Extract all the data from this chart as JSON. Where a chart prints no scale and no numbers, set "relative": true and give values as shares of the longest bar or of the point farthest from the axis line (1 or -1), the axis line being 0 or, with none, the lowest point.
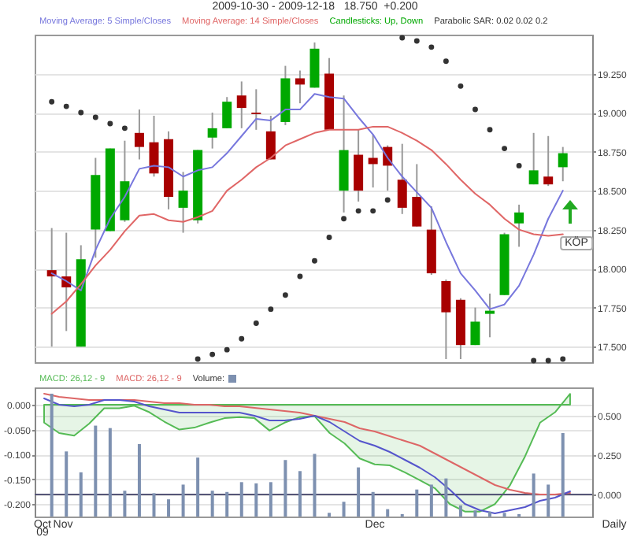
{
  "chart_data": [
    {
      "type": "candlestick",
      "title": "2009-10-30 - 2009-12-18   18.750  +0.200",
      "categories": [
        null,
        null,
        null,
        null,
        null,
        null,
        null,
        null,
        null,
        null,
        null,
        null,
        null,
        null,
        null,
        null,
        null,
        null,
        null,
        null,
        null,
        null,
        null,
        null,
        null,
        null,
        null,
        null,
        null,
        null,
        null,
        null,
        null,
        null,
        null,
        null
      ],
      "series": [
        {
          "name": "Moving Average: 5 Simple/Closes",
          "type": "line",
          "color": "#7777dd",
          "values": [
            17.97,
            17.92,
            17.86,
            18.12,
            18.32,
            18.46,
            18.64,
            18.66,
            18.65,
            18.59,
            18.63,
            18.65,
            18.74,
            18.85,
            18.96,
            18.95,
            19.02,
            19.02,
            19.12,
            19.1,
            19.09,
            18.97,
            18.86,
            18.71,
            18.59,
            18.49,
            18.39,
            18.17,
            17.97,
            17.86,
            17.74,
            17.77,
            17.89,
            18.09,
            18.32,
            18.5
          ]
        },
        {
          "name": "Moving Average: 14 Simple/Closes",
          "type": "line",
          "color": "#e06666",
          "values": [
            17.71,
            17.79,
            17.9,
            18.02,
            18.12,
            18.24,
            18.34,
            18.35,
            18.31,
            18.3,
            18.33,
            18.37,
            18.5,
            18.57,
            18.65,
            18.71,
            18.79,
            18.83,
            18.87,
            18.89,
            18.89,
            18.89,
            18.91,
            18.91,
            18.87,
            18.82,
            18.76,
            18.67,
            18.57,
            18.48,
            18.41,
            18.32,
            18.25,
            18.22,
            18.21,
            18.22
          ]
        },
        {
          "name": "Candlesticks: Up, Down",
          "type": "candlestick",
          "colors": [
            "#a80000",
            "#a80000",
            "#00a800",
            "#00a800",
            "#00a800",
            "#00a800",
            "#a80000",
            "#a80000",
            "#a80000",
            "#00a800",
            "#00a800",
            "#00a800",
            "#00a800",
            "#a80000",
            "#a80000",
            "#a80000",
            "#00a800",
            "#a80000",
            "#00a800",
            "#a80000",
            "#00a800",
            "#a80000",
            "#a80000",
            "#a80000",
            "#a80000",
            "#a80000",
            "#a80000",
            "#a80000",
            "#a80000",
            "#00a800",
            "#00a800",
            "#00a800",
            "#00a800",
            "#00a800",
            "#a80000",
            "#00a800"
          ],
          "ohlc": [
            [
              17.99,
              18.26,
              17.5,
              17.95
            ],
            [
              17.95,
              18.23,
              17.6,
              17.88
            ],
            [
              17.5,
              18.15,
              17.5,
              18.06
            ],
            [
              18.25,
              18.71,
              18.07,
              18.6
            ],
            [
              18.24,
              18.77,
              18.24,
              18.77
            ],
            [
              18.31,
              18.82,
              18.3,
              18.56
            ],
            [
              18.87,
              19.02,
              18.7,
              18.78
            ],
            [
              18.81,
              18.98,
              18.59,
              18.61
            ],
            [
              18.83,
              18.88,
              18.38,
              18.46
            ],
            [
              18.39,
              18.62,
              18.23,
              18.5
            ],
            [
              18.31,
              18.76,
              18.29,
              18.76
            ],
            [
              18.84,
              19.0,
              18.77,
              18.9
            ],
            [
              18.9,
              19.1,
              18.9,
              19.07
            ],
            [
              19.11,
              19.2,
              18.9,
              19.03
            ],
            [
              19.0,
              19.15,
              18.89,
              18.99
            ],
            [
              18.88,
              18.98,
              18.7,
              18.7
            ],
            [
              18.94,
              19.3,
              18.92,
              19.22
            ],
            [
              19.22,
              19.27,
              19.06,
              19.18
            ],
            [
              19.16,
              19.45,
              19.16,
              19.41
            ],
            [
              19.25,
              19.35,
              18.89,
              18.89
            ],
            [
              18.5,
              19.11,
              18.36,
              18.76
            ],
            [
              18.73,
              18.89,
              18.43,
              18.5
            ],
            [
              18.71,
              18.86,
              18.52,
              18.67
            ],
            [
              18.78,
              18.79,
              18.5,
              18.66
            ],
            [
              18.57,
              18.8,
              18.35,
              18.39
            ],
            [
              18.46,
              18.67,
              18.27,
              18.27
            ],
            [
              18.25,
              18.4,
              17.96,
              17.97
            ],
            [
              17.92,
              17.93,
              17.42,
              17.72
            ],
            [
              17.8,
              17.81,
              17.42,
              17.51
            ],
            [
              17.51,
              17.75,
              17.51,
              17.66
            ],
            [
              17.71,
              17.84,
              17.56,
              17.73
            ],
            [
              17.83,
              18.23,
              17.83,
              18.22
            ],
            [
              18.29,
              18.41,
              18.14,
              18.36
            ],
            [
              18.54,
              18.87,
              18.54,
              18.63
            ],
            [
              18.59,
              18.85,
              18.53,
              18.54
            ],
            [
              18.65,
              18.78,
              18.56,
              18.74
            ]
          ]
        },
        {
          "name": "Parabolic SAR: 0.02 0.02 0.2",
          "type": "scatter",
          "color": "#333333",
          "marker": "circle",
          "values": [
            19.07,
            19.04,
            19.0,
            18.97,
            18.93,
            18.9,
            null,
            null,
            null,
            null,
            17.42,
            17.45,
            17.48,
            17.55,
            17.65,
            17.74,
            17.83,
            17.95,
            18.05,
            18.2,
            18.32,
            18.37,
            18.37,
            18.44,
            19.48,
            19.46,
            19.42,
            19.33,
            19.17,
            19.02,
            18.89,
            18.77,
            18.66,
            17.41,
            17.41,
            17.42
          ]
        }
      ],
      "ylim": [
        17.4,
        19.5
      ],
      "yticks": [
        {
          "value": 17.5,
          "label": "17.500"
        },
        {
          "value": 17.75,
          "label": "17.750"
        },
        {
          "value": 18,
          "label": "18.000"
        },
        {
          "value": 18.25,
          "label": "18.250"
        },
        {
          "value": 18.5,
          "label": "18.500"
        },
        {
          "value": 18.75,
          "label": "18.750"
        },
        {
          "value": 19,
          "label": "19.000"
        },
        {
          "value": 19.25,
          "label": "19.250"
        }
      ],
      "grid": "y",
      "legend": "top left",
      "tick_labels": "y",
      "annotations": [
        "Oct",
        "Nov",
        "Dec",
        "09",
        "Daily",
        "KÖP"
      ]
    },
    {
      "type": "line",
      "categories": [
        null,
        null,
        null,
        null,
        null,
        null,
        null,
        null,
        null,
        null,
        null,
        null,
        null,
        null,
        null,
        null,
        null,
        null,
        null,
        null,
        null,
        null,
        null,
        null,
        null,
        null,
        null,
        null,
        null,
        null,
        null,
        null,
        null,
        null,
        null,
        null
      ],
      "series": [
        {
          "name": "MACD: 26,12 - 9",
          "type": "area",
          "color": "#55bb55",
          "values": [
            -0.036,
            -0.057,
            -0.062,
            -0.038,
            -0.007,
            -0.007,
            -0.002,
            -0.015,
            -0.034,
            -0.05,
            -0.046,
            -0.036,
            -0.027,
            -0.025,
            -0.027,
            -0.052,
            -0.036,
            -0.025,
            -0.023,
            -0.057,
            -0.078,
            -0.108,
            -0.12,
            -0.122,
            -0.136,
            -0.152,
            -0.168,
            -0.2,
            -0.215,
            -0.215,
            -0.2,
            -0.162,
            -0.104,
            -0.036,
            -0.015,
            0.022
          ]
        },
        {
          "name": "MACD: 26,12 - 9",
          "color": "#dd6666",
          "axis": "y2",
          "values": [
            0.64,
            0.62,
            0.61,
            0.6,
            0.6,
            0.6,
            0.6,
            0.59,
            0.58,
            0.58,
            0.57,
            0.57,
            0.56,
            0.56,
            0.55,
            0.54,
            0.53,
            0.52,
            0.5,
            0.48,
            0.46,
            0.42,
            0.4,
            0.37,
            0.34,
            0.31,
            0.26,
            0.21,
            0.16,
            0.11,
            0.06,
            0.03,
            0.01,
            0.0,
            0.0,
            0.01
          ]
        },
        {
          "color": "#5555cc",
          "axis": "y2",
          "values": [
            0.61,
            0.57,
            0.56,
            0.57,
            0.6,
            0.6,
            0.59,
            0.56,
            0.54,
            0.52,
            0.52,
            0.52,
            0.52,
            0.52,
            0.5,
            0.47,
            0.47,
            0.48,
            0.5,
            0.46,
            0.4,
            0.34,
            0.31,
            0.27,
            0.22,
            0.17,
            0.11,
            0.03,
            -0.06,
            -0.1,
            -0.12,
            -0.1,
            -0.08,
            -0.04,
            -0.02,
            0.02
          ]
        }
      ],
      "ylim": [
        -0.225,
        0.035
      ],
      "yticks": [
        {
          "value": -0.2,
          "label": "-0.200"
        },
        {
          "value": -0.15,
          "label": "-0.150"
        },
        {
          "value": -0.1,
          "label": "-0.100"
        },
        {
          "value": -0.05,
          "label": "-0.050"
        },
        {
          "value": 0,
          "label": "0.000"
        }
      ],
      "y2lim": [
        -0.14,
        0.68
      ],
      "y2ticks": [
        {
          "value": 0,
          "label": "0.000"
        },
        {
          "value": 0.25,
          "label": "0.250"
        },
        {
          "value": 0.5,
          "label": "0.500"
        }
      ],
      "ref_lines": [
        {
          "axis": "y2",
          "value": 0,
          "color": "#555577"
        }
      ],
      "grid": "y",
      "legend": "top left",
      "tick_labels": "y"
    },
    {
      "type": "bar",
      "relative": true,
      "tick_labels": false,
      "categories": [
        null,
        null,
        null,
        null,
        null,
        null,
        null,
        null,
        null,
        null,
        null,
        null,
        null,
        null,
        null,
        null,
        null,
        null,
        null,
        null,
        null,
        null,
        null,
        null,
        null,
        null,
        null,
        null,
        null,
        null,
        null,
        null,
        null,
        null,
        null,
        null
      ],
      "series": [
        {
          "name": "Volume:",
          "color": "#7d90b0",
          "values": [
            1.0,
            0.53,
            0.36,
            0.74,
            0.72,
            0.21,
            0.59,
            0.19,
            0.14,
            0.26,
            0.48,
            0.21,
            0.2,
            0.28,
            0.27,
            0.28,
            0.46,
            0.37,
            0.51,
            0.03,
            0.12,
            0.4,
            0.2,
            0.06,
            0.02,
            0.22,
            0.26,
            0.31,
            0.09,
            0.05,
            0.04,
            0.03,
            0.02,
            0.35,
            0.26,
            0.68
          ]
        }
      ],
      "legend": "top left"
    }
  ]
}
